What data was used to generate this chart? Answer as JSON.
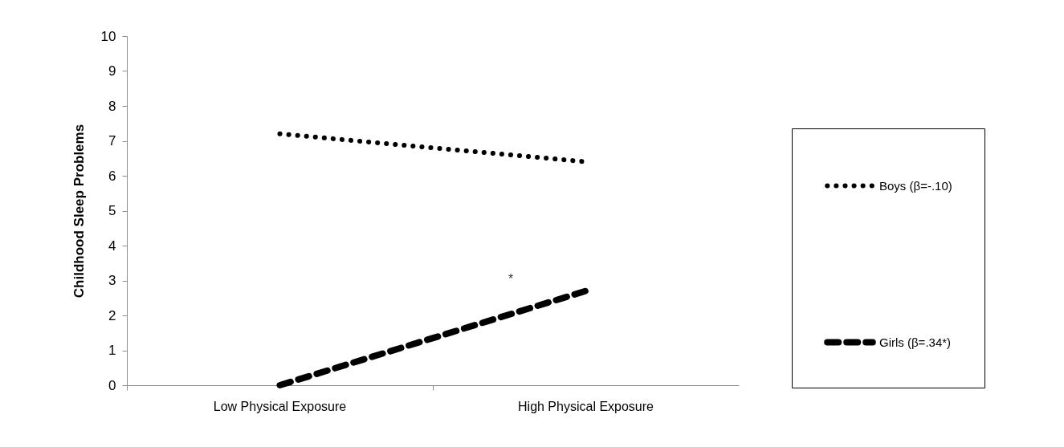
{
  "chart_data": {
    "type": "line",
    "ylabel": "Childhood Sleep Problems",
    "categories": [
      "Low Physical Exposure",
      "High Physical Exposure"
    ],
    "series": [
      {
        "name": "Boys (β=-.10)",
        "color": "#000000",
        "line_style": "dotted",
        "values": [
          7.2,
          6.4
        ]
      },
      {
        "name": "Girls (β=.34*)",
        "color": "#000000",
        "line_style": "dashed",
        "values": [
          0,
          2.7
        ]
      }
    ],
    "ylim": [
      0,
      10
    ],
    "yticks": [
      0,
      1,
      2,
      3,
      4,
      5,
      6,
      7,
      8,
      9,
      10
    ],
    "grid": false,
    "legend": "right",
    "annotations": [
      "*"
    ]
  }
}
